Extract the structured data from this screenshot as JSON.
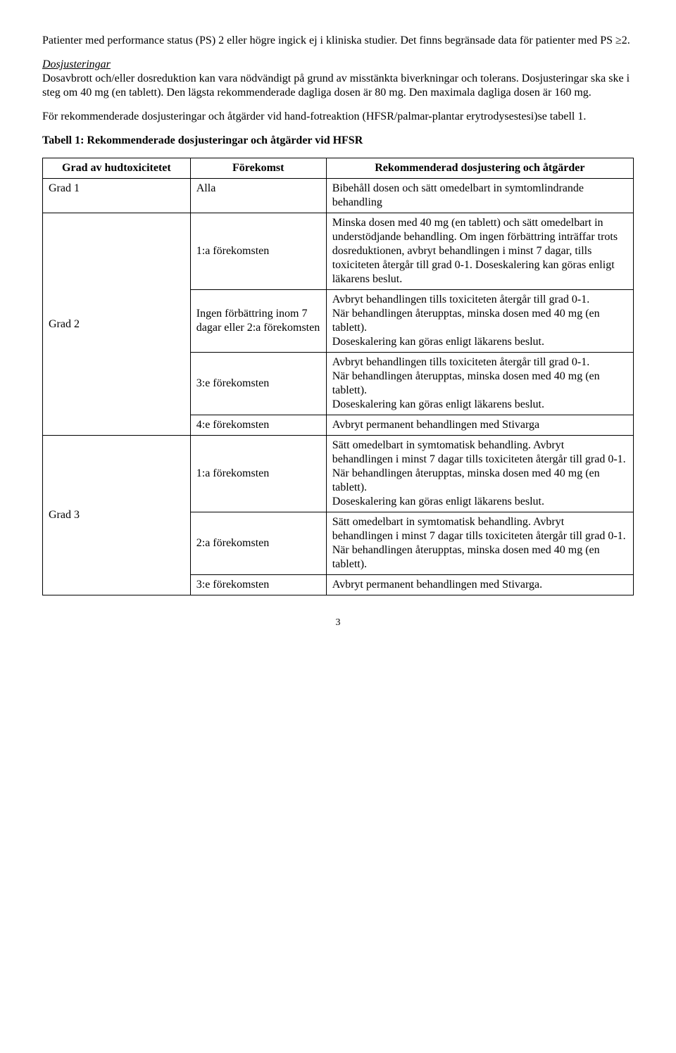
{
  "paragraphs": {
    "p1": "Patienter med performance status (PS) 2 eller högre ingick ej i kliniska studier. Det finns begränsade data för patienter med PS ≥2.",
    "p2_heading": "Dosjusteringar",
    "p2": "Dosavbrott och/eller dosreduktion kan vara nödvändigt på grund av misstänkta biverkningar och tolerans. Dosjusteringar ska ske i steg om 40 mg (en tablett). Den lägsta rekommenderade dagliga dosen är 80 mg. Den maximala dagliga dosen är 160 mg.",
    "p3": "För rekommenderade dosjusteringar och åtgärder vid hand-fotreaktion (HFSR/palmar-plantar erytrodysestesi)se tabell 1.",
    "table_caption": "Tabell 1: Rekommenderade dosjusteringar och åtgärder vid HFSR"
  },
  "table": {
    "headers": {
      "col1": "Grad av hudtoxicitetet",
      "col2": "Förekomst",
      "col3": "Rekommenderad dosjustering och åtgärder"
    },
    "rows": [
      {
        "grade": "Grad 1",
        "occ": "Alla",
        "action": "Bibehåll dosen och sätt omedelbart in symtomlindrande behandling"
      },
      {
        "grade": "Grad 2",
        "occ": "1:a förekomsten",
        "action": "Minska dosen med 40 mg (en tablett) och sätt omedelbart in understödjande behandling. Om ingen förbättring inträffar trots dosreduktionen, avbryt behandlingen i minst 7 dagar, tills toxiciteten återgår till grad 0-1. Doseskalering kan göras enligt läkarens beslut."
      },
      {
        "occ": "Ingen förbättring inom 7 dagar eller 2:a förekomsten",
        "action": "Avbryt behandlingen tills toxiciteten återgår till grad 0-1.\nNär behandlingen återupptas, minska dosen med 40 mg (en tablett).\nDoseskalering kan göras enligt läkarens beslut."
      },
      {
        "occ": "3:e förekomsten",
        "action": "Avbryt behandlingen tills toxiciteten återgår till grad 0-1.\nNär behandlingen återupptas, minska dosen med 40 mg (en tablett).\nDoseskalering kan göras enligt läkarens beslut."
      },
      {
        "occ": "4:e förekomsten",
        "action": "Avbryt permanent behandlingen med Stivarga"
      },
      {
        "grade": "Grad 3",
        "occ": "1:a förekomsten",
        "action": "Sätt omedelbart in symtomatisk behandling. Avbryt behandlingen i minst 7 dagar tills toxiciteten återgår till grad 0-1.\nNär behandlingen återupptas, minska dosen med 40 mg (en tablett).\nDoseskalering kan göras enligt läkarens beslut."
      },
      {
        "occ": "2:a förekomsten",
        "action": "Sätt omedelbart in symtomatisk behandling. Avbryt behandlingen i minst 7 dagar tills toxiciteten återgår till grad 0-1.\nNär behandlingen återupptas, minska dosen med 40 mg (en tablett)."
      },
      {
        "occ": "3:e förekomsten",
        "action": "Avbryt permanent behandlingen med Stivarga."
      }
    ]
  },
  "page_number": "3"
}
